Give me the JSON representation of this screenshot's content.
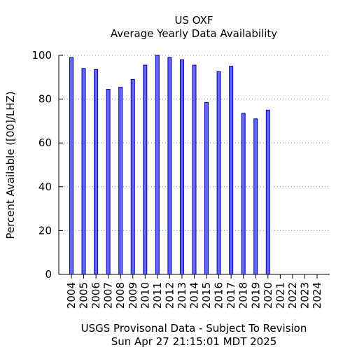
{
  "chart_data": {
    "type": "bar",
    "title": "US OXF",
    "subtitle": "Average Yearly Data Availability",
    "ylabel": "Percent Available ([00]/LHZ)",
    "xlabel": "USGS Provisonal Data - Subject To Revision",
    "timestamp": "Sun Apr 27 21:15:01 MDT 2025",
    "ylim": [
      0,
      100
    ],
    "yticks": [
      0,
      20,
      40,
      60,
      80,
      100
    ],
    "grid": "horizontal dotted",
    "bar_color": "#6666ff",
    "bar_edge": "#0000aa",
    "categories": [
      "2004",
      "2005",
      "2006",
      "2007",
      "2008",
      "2009",
      "2010",
      "2011",
      "2012",
      "2013",
      "2014",
      "2015",
      "2016",
      "2017",
      "2018",
      "2019",
      "2020",
      "2021",
      "2022",
      "2023",
      "2024"
    ],
    "values": [
      99,
      94,
      93.5,
      84.5,
      85.5,
      89,
      95.5,
      100,
      99,
      98,
      95.5,
      78.5,
      92.5,
      95,
      73.5,
      71,
      75,
      0,
      0,
      0,
      0
    ]
  }
}
